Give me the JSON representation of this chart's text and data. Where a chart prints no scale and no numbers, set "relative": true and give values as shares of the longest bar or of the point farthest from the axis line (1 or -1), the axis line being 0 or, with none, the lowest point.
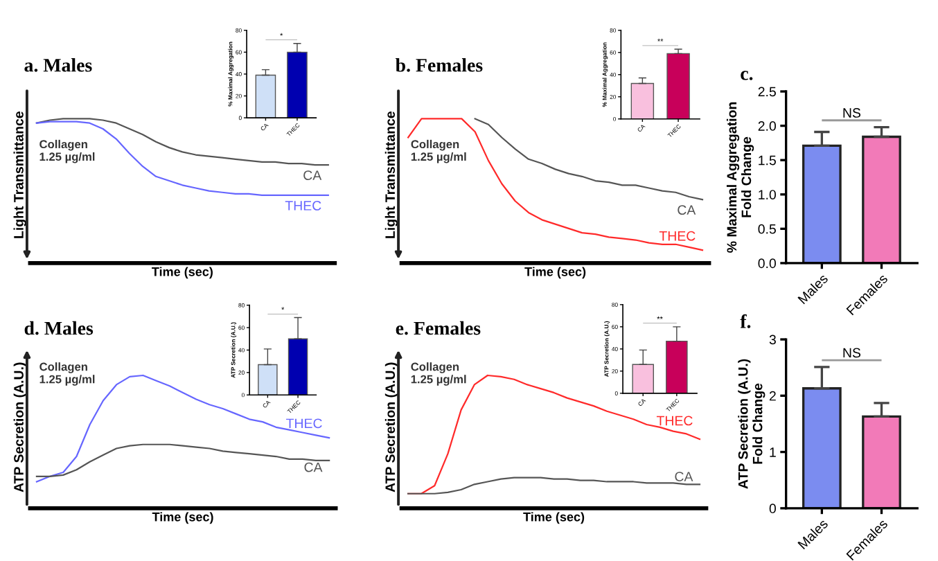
{
  "chart_data": [
    {
      "type": "line",
      "title": "a. Males",
      "ylabel": "Light Transmittance",
      "xlabel": "Time (sec)",
      "relative": true,
      "annotations": [
        "Collagen\n1.25 µg/ml"
      ],
      "categories": [
        null,
        null,
        null,
        null,
        null,
        null,
        null,
        null,
        null,
        null,
        null,
        null,
        null,
        null,
        null,
        null,
        null,
        null,
        null,
        null,
        null,
        null,
        null
      ],
      "series": [
        {
          "name": "CA",
          "color": "#555555",
          "values": [
            0.97,
            0.99,
            1,
            1,
            1,
            0.99,
            0.97,
            0.93,
            0.89,
            0.84,
            0.8,
            0.77,
            0.75,
            0.74,
            0.73,
            0.72,
            0.71,
            0.7,
            0.7,
            0.69,
            0.69,
            0.68,
            0.68
          ]
        },
        {
          "name": "THEC",
          "color": "#6666ff",
          "values": [
            0.97,
            0.98,
            0.98,
            0.98,
            0.97,
            0.93,
            0.86,
            0.76,
            0.67,
            0.6,
            0.57,
            0.54,
            0.52,
            0.5,
            0.49,
            0.48,
            0.48,
            0.47,
            0.47,
            0.47,
            0.47,
            0.47,
            0.47
          ]
        }
      ]
    },
    {
      "type": "bar",
      "ylabel": "% Maximal Aggregation",
      "categories": [
        "CA",
        "THEC"
      ],
      "values": [
        39,
        60
      ],
      "colors": [
        "#cfe0f7",
        "#0000b0"
      ],
      "errors": [
        [
          39,
          44
        ],
        [
          60,
          68
        ]
      ],
      "ylim": [
        0,
        80
      ],
      "yticks": [
        0,
        20,
        40,
        60,
        80
      ],
      "annotations": [
        "*"
      ]
    },
    {
      "type": "line",
      "title": "b. Females",
      "ylabel": "Light Transmittance",
      "xlabel": "Time (sec)",
      "relative": true,
      "annotations": [
        "Collagen\n1.25 µg/ml"
      ],
      "categories": [
        null,
        null,
        null,
        null,
        null,
        null,
        null,
        null,
        null,
        null,
        null,
        null,
        null,
        null,
        null,
        null,
        null,
        null,
        null,
        null,
        null,
        null,
        null
      ],
      "series": [
        {
          "name": "CA",
          "color": "#555555",
          "values": [
            null,
            null,
            null,
            null,
            null,
            1,
            0.96,
            0.87,
            0.79,
            0.72,
            0.69,
            0.65,
            0.62,
            0.6,
            0.57,
            0.56,
            0.54,
            0.54,
            0.52,
            0.5,
            0.49,
            0.46,
            0.44
          ]
        },
        {
          "name": "THEC",
          "color": "#ff2a2a",
          "values": [
            0.87,
            1,
            1,
            1,
            1,
            0.91,
            0.71,
            0.55,
            0.43,
            0.35,
            0.3,
            0.27,
            0.24,
            0.21,
            0.2,
            0.18,
            0.17,
            0.16,
            0.14,
            0.13,
            0.13,
            0.11,
            0.09
          ]
        }
      ]
    },
    {
      "type": "bar",
      "ylabel": "% Maximal Aggregation",
      "categories": [
        "CA",
        "THEC"
      ],
      "values": [
        32,
        59
      ],
      "colors": [
        "#f9c0de",
        "#c8005a"
      ],
      "errors": [
        [
          32,
          37
        ],
        [
          59,
          63
        ]
      ],
      "ylim": [
        0,
        80
      ],
      "yticks": [
        0,
        20,
        40,
        60,
        80
      ],
      "annotations": [
        "**"
      ]
    },
    {
      "type": "bar",
      "title": "c.",
      "ylabel": "% Maximal Aggregation\nFold Change",
      "categories": [
        "Males",
        "Females"
      ],
      "values": [
        1.71,
        1.84
      ],
      "colors": [
        "#7b8cf0",
        "#f27ab8"
      ],
      "errors": [
        [
          1.71,
          1.91
        ],
        [
          1.84,
          1.98
        ]
      ],
      "ylim": [
        0,
        2.5
      ],
      "yticks": [
        {
          "value": 0,
          "label": "0.0"
        },
        0.5,
        {
          "value": 1,
          "label": "1.0"
        },
        1.5,
        {
          "value": 2,
          "label": "2.0"
        },
        2.5
      ],
      "annotations": [
        "NS"
      ]
    },
    {
      "type": "line",
      "title": "d. Males",
      "ylabel": "ATP Secretion (A.U.)",
      "xlabel": "Time (sec)",
      "relative": true,
      "annotations": [
        "Collagen\n1.25 µg/ml"
      ],
      "categories": [
        null,
        null,
        null,
        null,
        null,
        null,
        null,
        null,
        null,
        null,
        null,
        null,
        null,
        null,
        null,
        null,
        null,
        null,
        null,
        null,
        null,
        null,
        null
      ],
      "series": [
        {
          "name": "THEC",
          "color": "#6666ff",
          "values": [
            0.2,
            0.24,
            0.27,
            0.39,
            0.63,
            0.81,
            0.93,
            0.99,
            1,
            0.96,
            0.92,
            0.87,
            0.82,
            0.78,
            0.75,
            0.71,
            0.67,
            0.65,
            0.61,
            0.59,
            0.57,
            0.55,
            0.53
          ]
        },
        {
          "name": "CA",
          "color": "#555555",
          "values": [
            0.24,
            0.24,
            0.25,
            0.29,
            0.35,
            0.4,
            0.45,
            0.47,
            0.48,
            0.48,
            0.48,
            0.47,
            0.46,
            0.45,
            0.43,
            0.42,
            0.41,
            0.4,
            0.39,
            0.37,
            0.37,
            0.36,
            0.36
          ]
        }
      ]
    },
    {
      "type": "bar",
      "ylabel": "ATP Secretion (A.U.)",
      "categories": [
        "CA",
        "THEC"
      ],
      "values": [
        27,
        50
      ],
      "colors": [
        "#cfe0f7",
        "#0000b0"
      ],
      "errors": [
        [
          27,
          41
        ],
        [
          50,
          69
        ]
      ],
      "ylim": [
        0,
        80
      ],
      "yticks": [
        0,
        20,
        40,
        60,
        80
      ],
      "annotations": [
        "*"
      ]
    },
    {
      "type": "line",
      "title": "e. Females",
      "ylabel": "ATP Secretion (A.U.)",
      "xlabel": "Time (sec)",
      "relative": true,
      "annotations": [
        "Collagen\n1.25 µg/ml"
      ],
      "categories": [
        null,
        null,
        null,
        null,
        null,
        null,
        null,
        null,
        null,
        null,
        null,
        null,
        null,
        null,
        null,
        null,
        null,
        null,
        null,
        null,
        null,
        null,
        null
      ],
      "series": [
        {
          "name": "THEC",
          "color": "#ff2a2a",
          "values": [
            0.11,
            0.11,
            0.17,
            0.41,
            0.74,
            0.93,
            1,
            0.99,
            0.97,
            0.93,
            0.9,
            0.87,
            0.83,
            0.8,
            0.77,
            0.73,
            0.7,
            0.67,
            0.63,
            0.61,
            0.58,
            0.56,
            0.52
          ]
        },
        {
          "name": "CA",
          "color": "#555555",
          "values": [
            0.11,
            0.11,
            0.11,
            0.12,
            0.14,
            0.18,
            0.2,
            0.22,
            0.23,
            0.23,
            0.23,
            0.22,
            0.22,
            0.21,
            0.21,
            0.2,
            0.2,
            0.2,
            0.19,
            0.19,
            0.19,
            0.18,
            0.18
          ]
        }
      ]
    },
    {
      "type": "bar",
      "ylabel": "ATP Secretion (A.U.)",
      "categories": [
        "CA",
        "THEC"
      ],
      "values": [
        26,
        47
      ],
      "colors": [
        "#f9c0de",
        "#c8005a"
      ],
      "errors": [
        [
          26,
          39
        ],
        [
          47,
          60
        ]
      ],
      "ylim": [
        0,
        80
      ],
      "yticks": [
        0,
        20,
        40,
        60,
        80
      ],
      "annotations": [
        "**"
      ]
    },
    {
      "type": "bar",
      "title": "f.",
      "ylabel": "ATP Secretion (A.U.)\nFold Change",
      "categories": [
        "Males",
        "Females"
      ],
      "values": [
        2.13,
        1.63
      ],
      "colors": [
        "#7b8cf0",
        "#f27ab8"
      ],
      "errors": [
        [
          2.13,
          2.51
        ],
        [
          1.63,
          1.87
        ]
      ],
      "ylim": [
        0,
        3
      ],
      "yticks": [
        0,
        1,
        2,
        3
      ],
      "annotations": [
        "NS"
      ]
    }
  ]
}
